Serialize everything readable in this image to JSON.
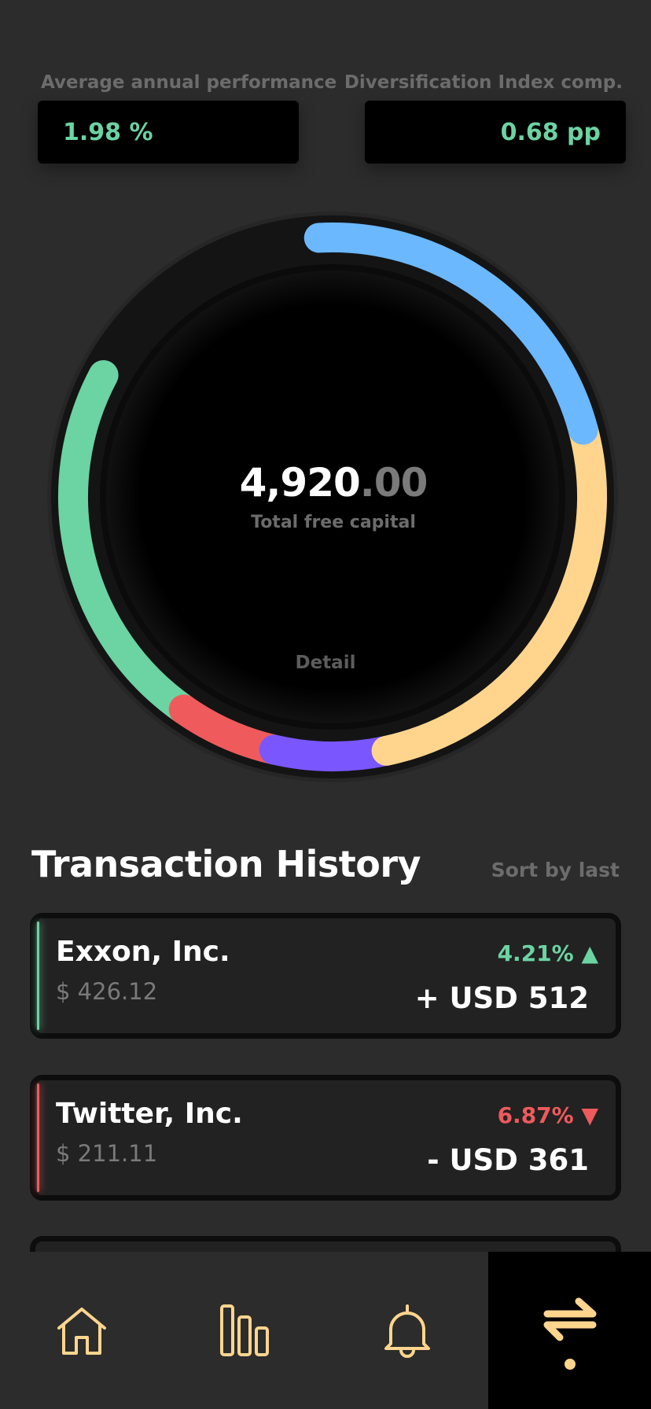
{
  "stats": {
    "left": {
      "label": "Average annual performance",
      "value": "1.98 %"
    },
    "right": {
      "label": "Diversification Index comp.",
      "value": "0.68 pp"
    }
  },
  "capital": {
    "whole": "4,920",
    "decimal": ".00",
    "label": "Total free capital",
    "detail": "Detail"
  },
  "colors": {
    "blue": "#6bb8ff",
    "yellow": "#ffd58e",
    "purple": "#7a56ff",
    "red": "#ef5a5c",
    "green": "#6cd3a3",
    "accent": "#ffd58e"
  },
  "transactions": {
    "title": "Transaction History",
    "sort_label": "Sort by last",
    "items": [
      {
        "name": "Exxon, Inc.",
        "price": "$ 426.12",
        "change": "4.21% ▲",
        "amount": "+ USD 512",
        "trend": "up"
      },
      {
        "name": "Twitter, Inc.",
        "price": "$ 211.11",
        "change": "6.87% ▼",
        "amount": "- USD 361",
        "trend": "down"
      }
    ]
  },
  "nav": [
    {
      "icon": "home-icon"
    },
    {
      "icon": "bar-chart-icon"
    },
    {
      "icon": "bell-icon"
    },
    {
      "icon": "transfer-icon",
      "active": true
    }
  ]
}
